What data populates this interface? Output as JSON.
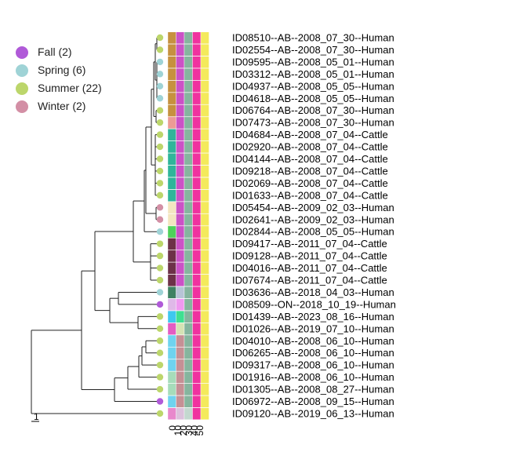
{
  "legend": {
    "items": [
      {
        "label": "Fall (2)",
        "color": "#b05ad8"
      },
      {
        "label": "Spring (6)",
        "color": "#9fd3d6"
      },
      {
        "label": "Summer (22)",
        "color": "#bcd66b"
      },
      {
        "label": "Winter (2)",
        "color": "#d38fa5"
      }
    ]
  },
  "scale_bar": {
    "label": "1"
  },
  "heatmap": {
    "tick_labels": [
      "0",
      "10",
      "20",
      "30",
      "40",
      "50"
    ]
  },
  "tips": [
    {
      "label": "ID08510--AB--2008_07_30--Human",
      "season": "Summer",
      "colors": [
        "#c6913f",
        "#cb52c6",
        "#85b59e",
        "#f0329f",
        "#f4ea5c"
      ]
    },
    {
      "label": "ID02554--AB--2008_07_30--Human",
      "season": "Summer",
      "colors": [
        "#c6913f",
        "#cb52c6",
        "#85b59e",
        "#f0329f",
        "#f4ea5c"
      ]
    },
    {
      "label": "ID09595--AB--2008_05_01--Human",
      "season": "Spring",
      "colors": [
        "#c6913f",
        "#cb52c6",
        "#85b59e",
        "#f0329f",
        "#f4ea5c"
      ]
    },
    {
      "label": "ID03312--AB--2008_05_01--Human",
      "season": "Spring",
      "colors": [
        "#c6913f",
        "#cb52c6",
        "#85b59e",
        "#f0329f",
        "#f4ea5c"
      ]
    },
    {
      "label": "ID04937--AB--2008_05_05--Human",
      "season": "Spring",
      "colors": [
        "#c6913f",
        "#cb52c6",
        "#85b59e",
        "#f0329f",
        "#f4ea5c"
      ]
    },
    {
      "label": "ID04618--AB--2008_05_05--Human",
      "season": "Spring",
      "colors": [
        "#c6913f",
        "#cb52c6",
        "#85b59e",
        "#f0329f",
        "#f4ea5c"
      ]
    },
    {
      "label": "ID06764--AB--2008_07_30--Human",
      "season": "Summer",
      "colors": [
        "#c6913f",
        "#cb52c6",
        "#85b59e",
        "#f0329f",
        "#f4ea5c"
      ]
    },
    {
      "label": "ID07473--AB--2008_07_30--Human",
      "season": "Summer",
      "colors": [
        "#ec9b95",
        "#cb52c6",
        "#85b59e",
        "#f0329f",
        "#f4ea5c"
      ]
    },
    {
      "label": "ID04684--AB--2008_07_04--Cattle",
      "season": "Summer",
      "colors": [
        "#2fb59a",
        "#cb52c6",
        "#85b59e",
        "#f0329f",
        "#f4ea5c"
      ]
    },
    {
      "label": "ID02920--AB--2008_07_04--Cattle",
      "season": "Summer",
      "colors": [
        "#2fb59a",
        "#cb52c6",
        "#85b59e",
        "#f0329f",
        "#f4ea5c"
      ]
    },
    {
      "label": "ID04144--AB--2008_07_04--Cattle",
      "season": "Summer",
      "colors": [
        "#2fb59a",
        "#cb52c6",
        "#85b59e",
        "#f0329f",
        "#f4ea5c"
      ]
    },
    {
      "label": "ID09218--AB--2008_07_04--Cattle",
      "season": "Summer",
      "colors": [
        "#2fb59a",
        "#cb52c6",
        "#85b59e",
        "#f0329f",
        "#f4ea5c"
      ]
    },
    {
      "label": "ID02069--AB--2008_07_04--Cattle",
      "season": "Summer",
      "colors": [
        "#2fb59a",
        "#cb52c6",
        "#85b59e",
        "#f0329f",
        "#f4ea5c"
      ]
    },
    {
      "label": "ID01633--AB--2008_07_04--Cattle",
      "season": "Summer",
      "colors": [
        "#2fb59a",
        "#cb52c6",
        "#85b59e",
        "#f0329f",
        "#f4ea5c"
      ]
    },
    {
      "label": "ID05454--AB--2009_02_03--Human",
      "season": "Winter",
      "colors": [
        "#f3e6c0",
        "#cb52c6",
        "#85b59e",
        "#f0329f",
        "#f4ea5c"
      ]
    },
    {
      "label": "ID02641--AB--2009_02_03--Human",
      "season": "Winter",
      "colors": [
        "#f3e6c0",
        "#cb52c6",
        "#85b59e",
        "#f0329f",
        "#f4ea5c"
      ]
    },
    {
      "label": "ID02844--AB--2008_05_05--Human",
      "season": "Spring",
      "colors": [
        "#4fd15a",
        "#cb52c6",
        "#85b59e",
        "#f0329f",
        "#f4ea5c"
      ]
    },
    {
      "label": "ID09417--AB--2011_07_04--Cattle",
      "season": "Summer",
      "colors": [
        "#6d3148",
        "#cb52c6",
        "#85b59e",
        "#f0329f",
        "#f4ea5c"
      ]
    },
    {
      "label": "ID09128--AB--2011_07_04--Cattle",
      "season": "Summer",
      "colors": [
        "#6d3148",
        "#cb52c6",
        "#85b59e",
        "#f0329f",
        "#f4ea5c"
      ]
    },
    {
      "label": "ID04016--AB--2011_07_04--Cattle",
      "season": "Summer",
      "colors": [
        "#6d3148",
        "#cb52c6",
        "#85b59e",
        "#f0329f",
        "#f4ea5c"
      ]
    },
    {
      "label": "ID07674--AB--2011_07_04--Cattle",
      "season": "Summer",
      "colors": [
        "#6d3148",
        "#cb52c6",
        "#85b59e",
        "#f0329f",
        "#f4ea5c"
      ]
    },
    {
      "label": "ID03636--AB--2018_04_03--Human",
      "season": "Spring",
      "colors": [
        "#3f8262",
        "#b7c4d6",
        "#85b59e",
        "#f0329f",
        "#f4ea5c"
      ]
    },
    {
      "label": "ID08509--ON--2018_10_19--Human",
      "season": "Fall",
      "colors": [
        "#dfb8e8",
        "#ef99f0",
        "#85b59e",
        "#f0329f",
        "#f4ea5c"
      ]
    },
    {
      "label": "ID01439--AB--2023_08_16--Human",
      "season": "Summer",
      "colors": [
        "#3ec8ef",
        "#3fe091",
        "#85b59e",
        "#f0329f",
        "#f4ea5c"
      ]
    },
    {
      "label": "ID01026--AB--2019_07_10--Human",
      "season": "Summer",
      "colors": [
        "#e35cc2",
        "#d5e3b4",
        "#85b59e",
        "#f0329f",
        "#f4ea5c"
      ]
    },
    {
      "label": "ID04010--AB--2008_06_10--Human",
      "season": "Summer",
      "colors": [
        "#6fd3ef",
        "#c59095",
        "#85b59e",
        "#f0329f",
        "#f4ea5c"
      ]
    },
    {
      "label": "ID06265--AB--2008_06_10--Human",
      "season": "Summer",
      "colors": [
        "#6fd3ef",
        "#c59095",
        "#85b59e",
        "#f0329f",
        "#f4ea5c"
      ]
    },
    {
      "label": "ID09317--AB--2008_06_10--Human",
      "season": "Summer",
      "colors": [
        "#6fd3ef",
        "#c59095",
        "#85b59e",
        "#f0329f",
        "#f4ea5c"
      ]
    },
    {
      "label": "ID01916--AB--2008_06_10--Human",
      "season": "Summer",
      "colors": [
        "#a6dcba",
        "#c59095",
        "#85b59e",
        "#f0329f",
        "#f4ea5c"
      ]
    },
    {
      "label": "ID01305--AB--2008_08_27--Human",
      "season": "Summer",
      "colors": [
        "#a6dcba",
        "#c59095",
        "#85b59e",
        "#f0329f",
        "#f4ea5c"
      ]
    },
    {
      "label": "ID06972--AB--2008_09_15--Human",
      "season": "Fall",
      "colors": [
        "#6fd3ef",
        "#c59095",
        "#85b59e",
        "#f0329f",
        "#f4ea5c"
      ]
    },
    {
      "label": "ID09120--AB--2019_06_13--Human",
      "season": "Summer",
      "colors": [
        "#e888cc",
        "#dcc1dc",
        "#c3d8cf",
        "#f0329f",
        "#f4ea5c"
      ]
    }
  ]
}
